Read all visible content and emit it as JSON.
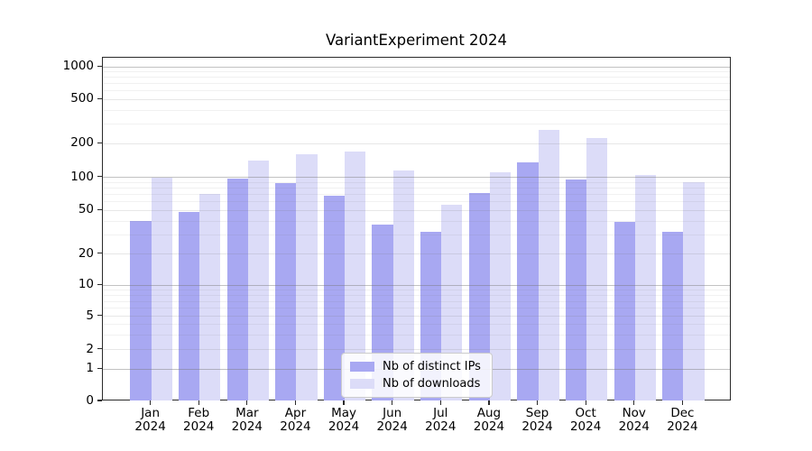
{
  "title": "VariantExperiment 2024",
  "chart_data": {
    "type": "bar",
    "title": "VariantExperiment 2024",
    "categories": [
      "Jan 2024",
      "Feb 2024",
      "Mar 2024",
      "Apr 2024",
      "May 2024",
      "Jun 2024",
      "Jul 2024",
      "Aug 2024",
      "Sep 2024",
      "Oct 2024",
      "Nov 2024",
      "Dec 2024"
    ],
    "series": [
      {
        "name": "Nb of distinct IPs",
        "color": "#a8a8f2",
        "values": [
          40,
          48,
          97,
          89,
          68,
          37,
          32,
          72,
          135,
          95,
          39,
          32
        ]
      },
      {
        "name": "Nb of downloads",
        "color": "#dcdcf8",
        "values": [
          100,
          70,
          140,
          160,
          170,
          115,
          56,
          110,
          265,
          225,
          105,
          90
        ]
      }
    ],
    "yscale": "symlog",
    "yticks": [
      0,
      1,
      2,
      5,
      10,
      20,
      50,
      100,
      200,
      500,
      1000
    ],
    "ylim": [
      0,
      1200
    ],
    "xlabel": "",
    "ylabel": "",
    "grid": true,
    "legend_position": "lower center"
  }
}
